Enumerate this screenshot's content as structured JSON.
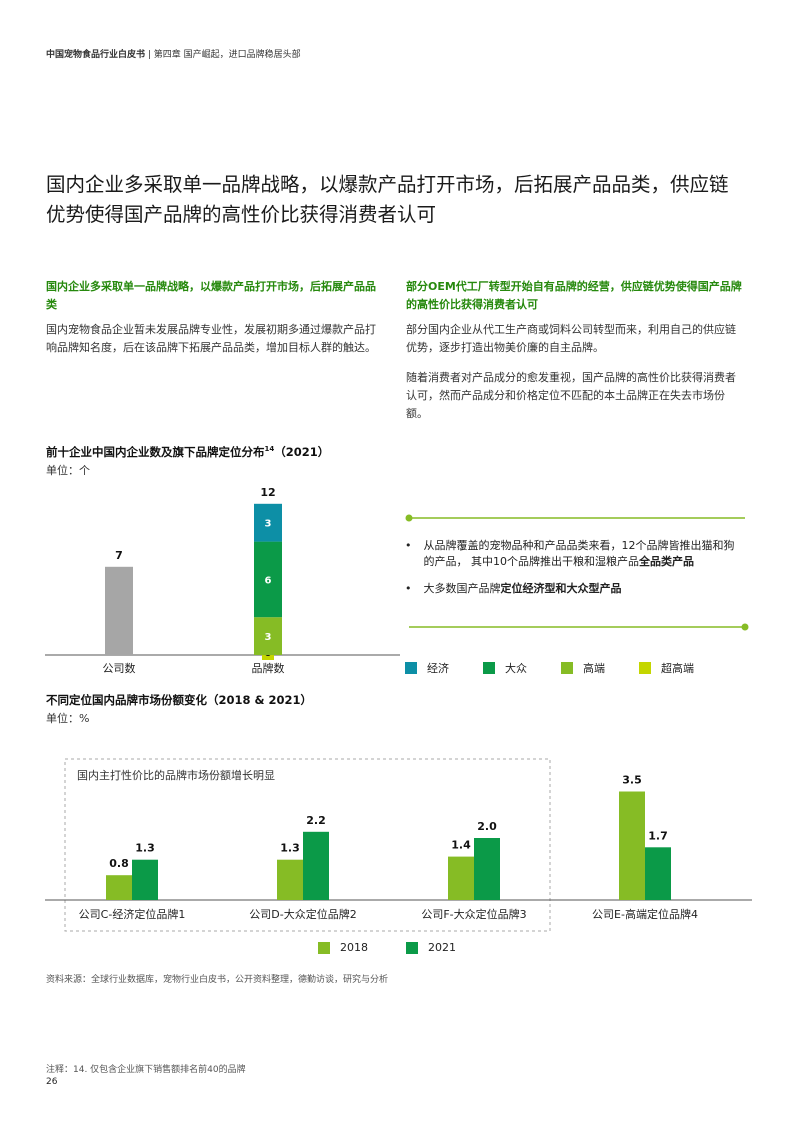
{
  "header": {
    "report": "中国宠物食品行业白皮书",
    "chapter": "第四章 国产崛起，进口品牌稳居头部"
  },
  "title": "国内企业多采取单一品牌战略，以爆款产品打开市场，后拓展产品品类，供应链优势使得国产品牌的高性价比获得消费者认可",
  "left_col": {
    "heading": "国内企业多采取单一品牌战略，以爆款产品打开市场，后拓展产品品类",
    "body": "国内宠物食品企业暂未发展品牌专业性，发展初期多通过爆款产品打响品牌知名度，后在该品牌下拓展产品品类，增加目标人群的触达。"
  },
  "right_col": {
    "heading": "部分OEM代工厂转型开始自有品牌的经营，供应链优势使得国产品牌的高性价比获得消费者认可",
    "body1": "部分国内企业从代工生产商或饲料公司转型而来，利用自己的供应链优势，逐步打造出物美价廉的自主品牌。",
    "body2": "随着消费者对产品成分的愈发重视，国产品牌的高性价比获得消费者认可，然而产品成分和价格定位不匹配的本土品牌正在失去市场份额。"
  },
  "chart1": {
    "title": "前十企业中国内企业数及旗下品牌定位分布",
    "title_sup": "14",
    "title_year": "（2021）",
    "unit": "单位：个"
  },
  "chart2": {
    "title": "不同定位国内品牌市场份额变化（2018 & 2021）",
    "unit": "单位：%",
    "box_note": "国内主打性价比的品牌市场份额增长明显"
  },
  "bullets": {
    "b1_text": "从品牌覆盖的宠物品种和产品品类来看，12个品牌皆推出猫和狗的产品， 其中10个品牌推出干粮和湿粮产品",
    "b1_bold": "全品类产品",
    "b2_text": "大多数国产品牌",
    "b2_bold": "定位经济型和大众型产品"
  },
  "chart_data": [
    {
      "type": "bar",
      "categories": [
        "公司数",
        "品牌数"
      ],
      "series": [
        {
          "name": "",
          "values": [
            7,
            null
          ]
        },
        {
          "name": "超高端",
          "values": [
            null,
            0
          ]
        },
        {
          "name": "高端",
          "values": [
            null,
            3
          ]
        },
        {
          "name": "大众",
          "values": [
            null,
            6
          ]
        },
        {
          "name": "经济",
          "values": [
            null,
            3
          ]
        }
      ],
      "totals": [
        7,
        12
      ],
      "legend": [
        "经济",
        "大众",
        "高端",
        "超高端"
      ],
      "stacked": true,
      "grid": false
    },
    {
      "type": "bar",
      "categories": [
        "公司C-经济定位品牌1",
        "公司D-大众定位品牌2",
        "公司F-大众定位品牌3",
        "公司E-高端定位品牌4"
      ],
      "series": [
        {
          "name": "2018",
          "values": [
            0.8,
            1.3,
            1.4,
            3.5
          ]
        },
        {
          "name": "2021",
          "values": [
            1.3,
            2.2,
            2.0,
            1.7
          ]
        }
      ],
      "grid": false,
      "legend": "bottom"
    }
  ],
  "colors": {
    "economy": "#0d8fa6",
    "mass": "#0b9a48",
    "premium": "#86bc25",
    "super_premium": "#c4d600",
    "company": "#a6a6a6",
    "y2018": "#86bc25",
    "y2021": "#0b9a48",
    "heading_green": "#26890d"
  },
  "footer": {
    "source": "资料来源：全球行业数据库，宠物行业白皮书，公开资料整理，德勤访谈，研究与分析",
    "note": "注释：14. 仅包含企业旗下销售额排名前40的品牌",
    "page": "26"
  }
}
